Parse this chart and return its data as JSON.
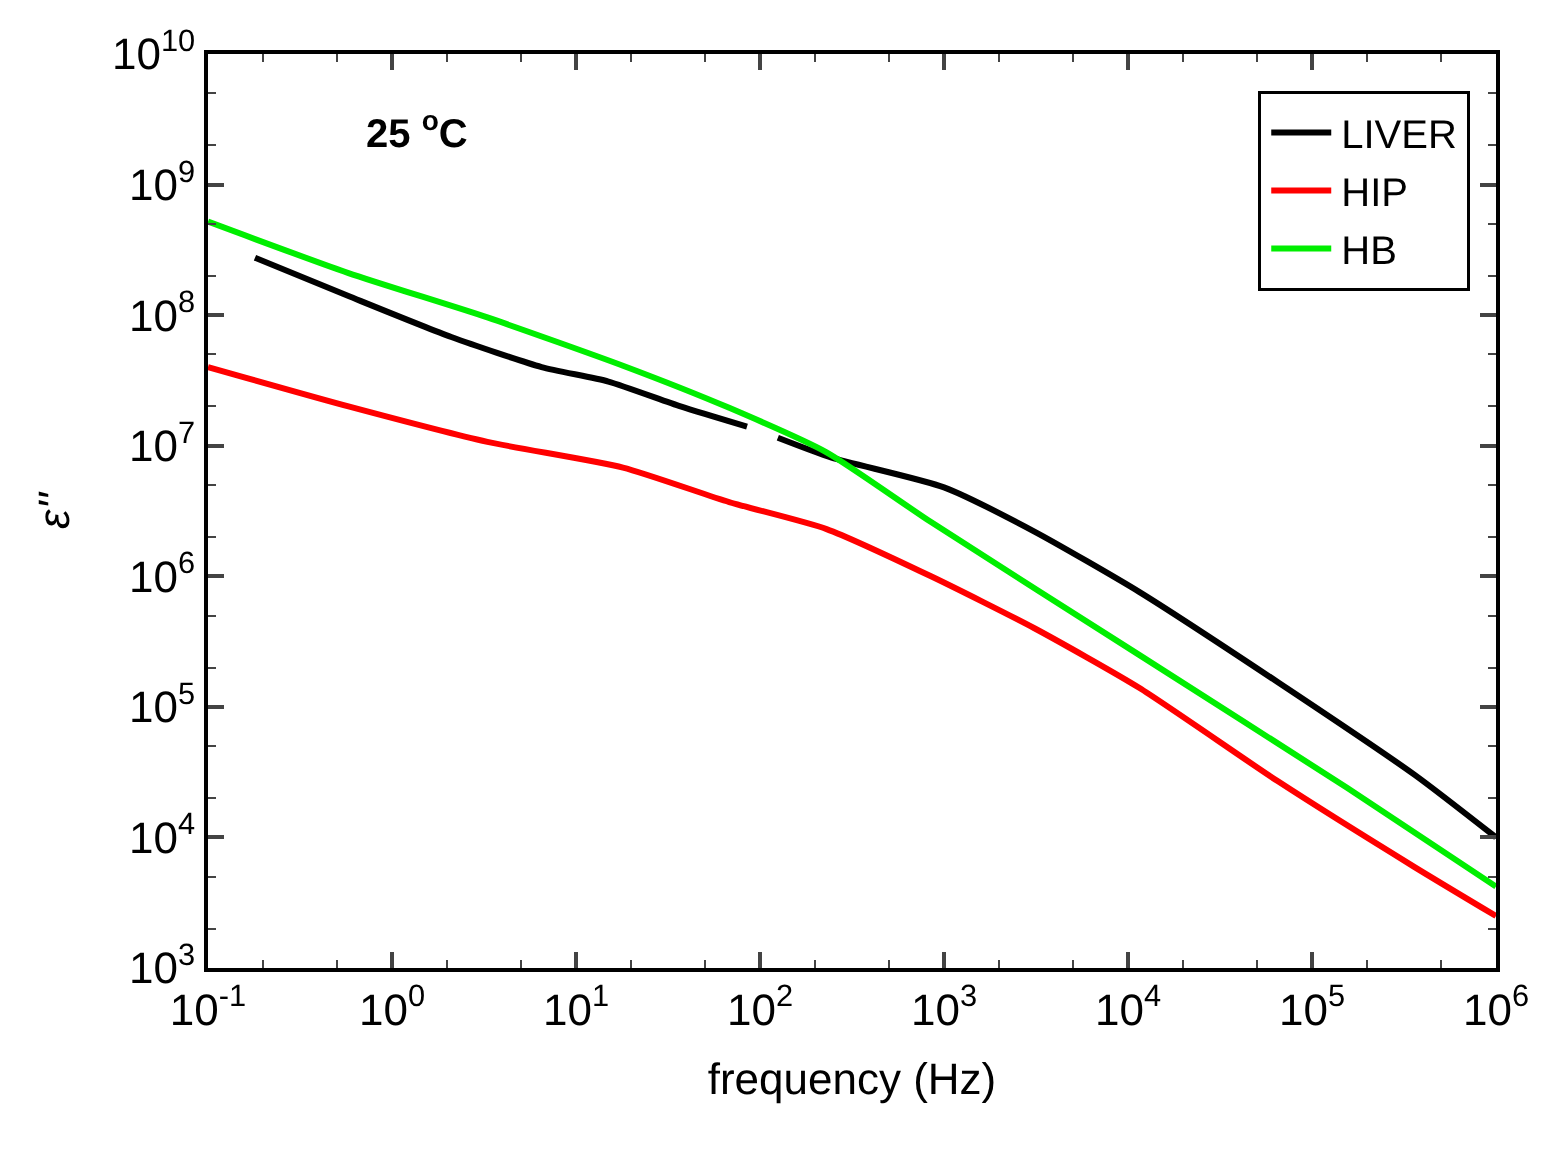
{
  "chart_data": {
    "type": "line",
    "xlabel": "frequency (Hz)",
    "ylabel": "ε''",
    "log": "xy",
    "legend": "top right",
    "line_style": "solid",
    "marker": "none",
    "xlim": [
      0.1,
      1000000
    ],
    "ylim": [
      1000,
      10000000000
    ],
    "xticks": [
      {
        "value": 0.1,
        "label": "10$^{-1}$"
      },
      {
        "value": 1,
        "label": "10$^{0}$"
      },
      {
        "value": 10,
        "label": "10$^{1}$"
      },
      {
        "value": 100,
        "label": "10$^{2}$"
      },
      {
        "value": 1000,
        "label": "10$^{3}$"
      },
      {
        "value": 10000,
        "label": "10$^{4}$"
      },
      {
        "value": 100000,
        "label": "10$^{5}$"
      },
      {
        "value": 1000000,
        "label": "10$^{6}$"
      }
    ],
    "yticks": [
      {
        "value": 1000,
        "label": "10$^{3}$"
      },
      {
        "value": 10000,
        "label": "10$^{4}$"
      },
      {
        "value": 100000,
        "label": "10$^{5}$"
      },
      {
        "value": 1000000,
        "label": "10$^{6}$"
      },
      {
        "value": 10000000,
        "label": "10$^{7}$"
      },
      {
        "value": 100000000,
        "label": "10$^{8}$"
      },
      {
        "value": 1000000000,
        "label": "10$^{9}$"
      },
      {
        "value": 10000000000,
        "label": "10$^{10}$"
      }
    ],
    "annotations": [
      "25 $^{o}$C"
    ],
    "series": [
      {
        "name": "LIVER",
        "color": "#000000",
        "x": [
          0.18,
          0.58,
          2.1,
          6.5,
          15,
          37,
          85,
          100,
          125,
          245,
          1000,
          3100,
          11500,
          65000,
          363000,
          1000000
        ],
        "values": [
          275000000,
          140000000,
          68000000,
          40000000,
          31000000,
          20000000,
          14000000,
          null,
          11500000,
          8100000,
          4800000,
          2200000,
          760000,
          155000,
          30000,
          10000
        ]
      },
      {
        "name": "HIP",
        "color": "#ff0000",
        "x": [
          0.1,
          0.58,
          3.3,
          18,
          68,
          230,
          850,
          3100,
          11500,
          65000,
          363000,
          1000000
        ],
        "values": [
          40000000,
          20000000,
          10700000,
          6800000,
          3700000,
          2300000,
          1000000,
          400000,
          140000,
          27000,
          5900,
          2500
        ]
      },
      {
        "name": "HB",
        "color": "#00ee00",
        "x": [
          0.1,
          0.58,
          3.3,
          18,
          68,
          230,
          850,
          11500,
          155000,
          1000000
        ],
        "values": [
          520000000,
          210000000,
          96000000,
          41000000,
          19500000,
          8900000,
          2600000,
          250000,
          24000,
          4200
        ]
      }
    ]
  }
}
